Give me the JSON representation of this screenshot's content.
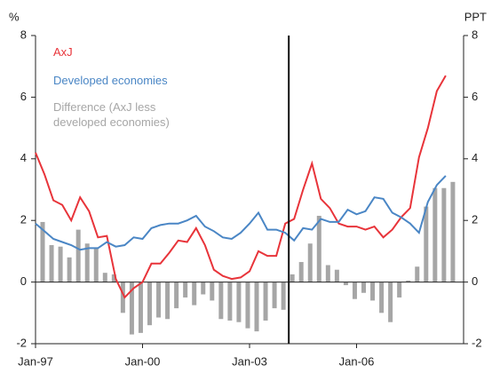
{
  "chart_data": {
    "type": "bar_line",
    "y_label": "%",
    "y2_label": "PPT",
    "xlim": [
      1997,
      2009
    ],
    "xticks": [
      {
        "value": 1997,
        "label": "Jan-97"
      },
      {
        "value": 2000,
        "label": "Jan-00"
      },
      {
        "value": 2003,
        "label": "Jan-03"
      },
      {
        "value": 2006,
        "label": "Jan-06"
      }
    ],
    "ylim": [
      -2,
      8
    ],
    "yticks": [
      -2,
      0,
      2,
      4,
      6,
      8
    ],
    "y2lim": [
      -2,
      8
    ],
    "y2ticks": [
      -2,
      0,
      2,
      4,
      6,
      8
    ],
    "vline": 2004.1,
    "x": [
      1997,
      1997.25,
      1997.5,
      1997.75,
      1998,
      1998.25,
      1998.5,
      1998.75,
      1999,
      1999.25,
      1999.5,
      1999.75,
      2000,
      2000.25,
      2000.5,
      2000.75,
      2001,
      2001.25,
      2001.5,
      2001.75,
      2002,
      2002.25,
      2002.5,
      2002.75,
      2003,
      2003.25,
      2003.5,
      2003.75,
      2004,
      2004.25,
      2004.5,
      2004.75,
      2005,
      2005.25,
      2005.5,
      2005.75,
      2006,
      2006.25,
      2006.5,
      2006.75,
      2007,
      2007.25,
      2007.5,
      2007.75,
      2008,
      2008.25,
      2008.5
    ],
    "series": [
      {
        "name": "AxJ",
        "type": "line",
        "color": "#e8343a",
        "values": [
          4.2,
          3.5,
          2.65,
          2.5,
          2.0,
          2.75,
          2.3,
          1.45,
          1.5,
          0.1,
          -0.5,
          -0.2,
          0.0,
          0.6,
          0.6,
          0.95,
          1.35,
          1.3,
          1.75,
          1.2,
          0.4,
          0.2,
          0.1,
          0.15,
          0.35,
          1.0,
          0.85,
          0.85,
          1.9,
          2.05,
          3.0,
          3.85,
          2.7,
          2.4,
          1.9,
          1.8,
          1.8,
          1.7,
          1.8,
          1.45,
          1.7,
          2.1,
          2.4,
          4.05,
          5.0,
          6.2,
          6.7
        ]
      },
      {
        "name": "Developed economies",
        "type": "line",
        "color": "#4a86c5",
        "values": [
          1.9,
          1.65,
          1.4,
          1.3,
          1.2,
          1.05,
          1.1,
          1.1,
          1.3,
          1.15,
          1.2,
          1.45,
          1.4,
          1.75,
          1.85,
          1.9,
          1.9,
          2.0,
          2.15,
          1.8,
          1.65,
          1.45,
          1.4,
          1.6,
          1.9,
          2.25,
          1.7,
          1.7,
          1.6,
          1.35,
          1.75,
          1.7,
          2.05,
          1.95,
          1.95,
          2.35,
          2.2,
          2.3,
          2.75,
          2.7,
          2.25,
          2.1,
          1.9,
          1.6,
          2.6,
          3.15,
          3.45
        ]
      },
      {
        "name": "Difference (AxJ less developed economies)",
        "type": "bar",
        "axis": "y2",
        "color": "#a6a6a6",
        "values": [
          1.95,
          1.2,
          1.15,
          0.8,
          1.7,
          1.25,
          1.1,
          0.3,
          0.25,
          -1.0,
          -1.7,
          -1.65,
          -1.4,
          -1.15,
          -1.2,
          -0.85,
          -0.5,
          -0.75,
          -0.4,
          -0.6,
          -1.2,
          -1.25,
          -1.3,
          -1.5,
          -1.6,
          -1.25,
          -0.85,
          -0.9,
          0.25,
          0.65,
          1.25,
          2.15,
          0.55,
          0.4,
          -0.1,
          -0.55,
          -0.35,
          -0.6,
          -1.0,
          -1.3,
          -0.5,
          0.05,
          0.5,
          2.45,
          3.05,
          3.05,
          3.25
        ]
      }
    ]
  }
}
